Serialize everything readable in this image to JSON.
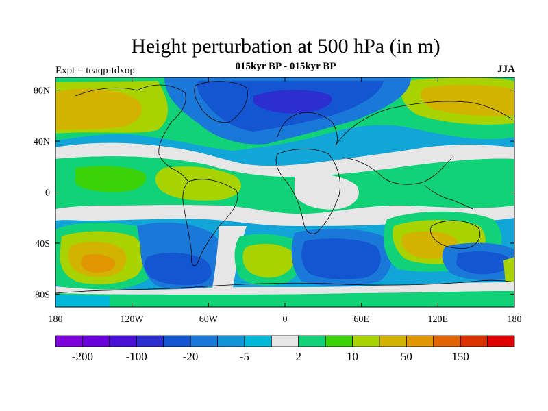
{
  "title": "Height perturbation at 500 hPa (in m)",
  "subtitle": "015kyr BP - 015kyr BP",
  "experiment": "Expt = teaqp-tdxop",
  "season": "JJA",
  "map": {
    "projection": "cylindrical equidistant",
    "lon_range": [
      -180,
      180
    ],
    "lat_range": [
      -90,
      90
    ],
    "lat_ticks": [
      {
        "value": 80,
        "label": "80N"
      },
      {
        "value": 40,
        "label": "40N"
      },
      {
        "value": 0,
        "label": "0"
      },
      {
        "value": -40,
        "label": "40S"
      },
      {
        "value": -80,
        "label": "80S"
      }
    ],
    "lon_ticks": [
      {
        "value": -180,
        "label": "180"
      },
      {
        "value": -120,
        "label": "120W"
      },
      {
        "value": -60,
        "label": "60W"
      },
      {
        "value": 0,
        "label": "0"
      },
      {
        "value": 60,
        "label": "60E"
      },
      {
        "value": 120,
        "label": "120E"
      },
      {
        "value": 180,
        "label": "180"
      }
    ]
  },
  "colorbar": {
    "colors": [
      "#7f00dc",
      "#6a00dc",
      "#4b10d8",
      "#2d2ed0",
      "#1455d2",
      "#1a78d8",
      "#1295d8",
      "#00b8d8",
      "#e6e6e6",
      "#12d278",
      "#3cd20a",
      "#a8d200",
      "#d2b400",
      "#e09600",
      "#e06400",
      "#dc3200",
      "#e00000"
    ],
    "labels": [
      {
        "index": 1,
        "text": "-200"
      },
      {
        "index": 3,
        "text": "-100"
      },
      {
        "index": 5,
        "text": "-20"
      },
      {
        "index": 7,
        "text": "-5"
      },
      {
        "index": 9,
        "text": "2"
      },
      {
        "index": 11,
        "text": "10"
      },
      {
        "index": 13,
        "text": "50"
      },
      {
        "index": 15,
        "text": "150"
      }
    ]
  }
}
